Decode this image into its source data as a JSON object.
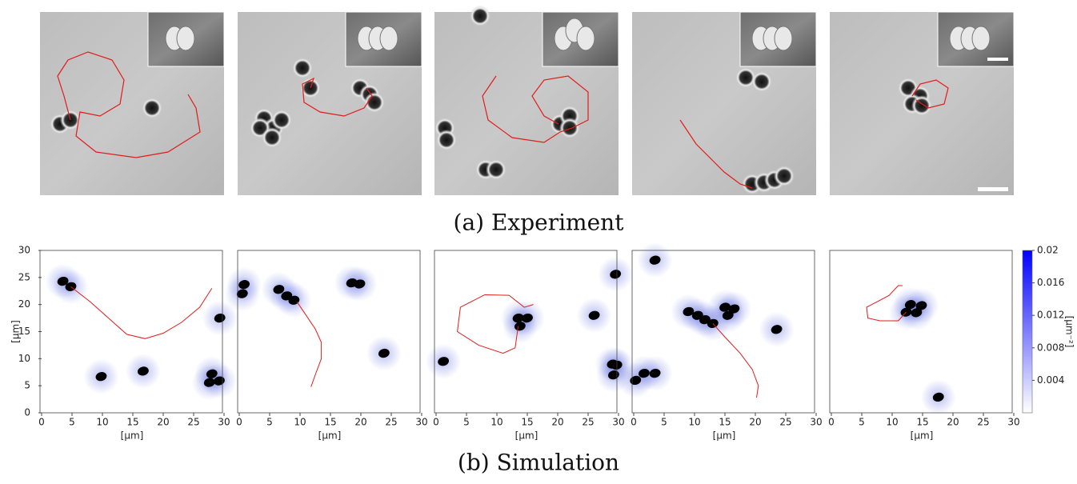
{
  "figure": {
    "caption_a": "(a) Experiment",
    "caption_b": "(b) Simulation"
  },
  "simulation": {
    "xlim": [
      0,
      30
    ],
    "ylim": [
      0,
      30
    ],
    "xticks": [
      0,
      5,
      10,
      15,
      20,
      25,
      30
    ],
    "yticks": [
      0,
      5,
      10,
      15,
      20,
      25,
      30
    ],
    "y_label": "[μm]",
    "panels": [
      {
        "x_label": "[μm]"
      },
      {
        "x_label": "[μm]"
      },
      {
        "x_label": "[μm]"
      },
      {
        "x_label": "[μm]"
      },
      {
        "x_label": "[μm]"
      }
    ],
    "colorbar": {
      "clim": [
        0,
        0.02
      ],
      "ticks": [
        0.004,
        0.008,
        0.012,
        0.016,
        0.02
      ],
      "label": "[μm⁻²]"
    }
  }
}
